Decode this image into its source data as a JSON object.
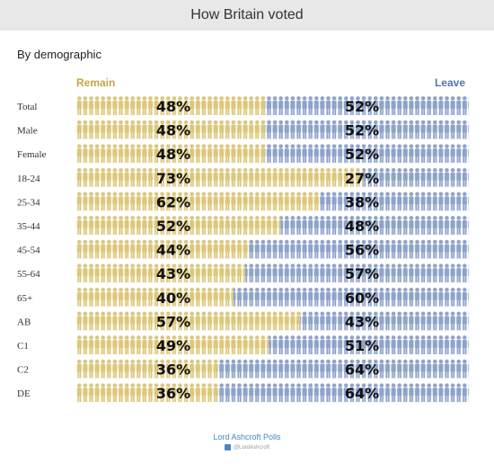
{
  "title": "How Britain voted",
  "subtitle": "By demographic",
  "footer": "Lord Ashcroft Polls",
  "handle": "@LordAshcroft",
  "colors": {
    "remain": "#dcc77a",
    "leave": "#8ea3c9",
    "remain_label": "#c9a543",
    "leave_label": "#4f75b8",
    "footer": "#4a86c6"
  },
  "chart_data": {
    "type": "bar",
    "title": "How Britain voted",
    "subtitle": "By demographic",
    "orientation": "horizontal",
    "stacked": true,
    "series_names": [
      "Remain",
      "Leave"
    ],
    "categories": [
      "Total",
      "Male",
      "Female",
      "18-24",
      "25-34",
      "35-44",
      "45-54",
      "55-64",
      "65+",
      "AB",
      "C1",
      "C2",
      "DE"
    ],
    "series": [
      {
        "name": "Remain",
        "values": [
          48,
          48,
          48,
          73,
          62,
          52,
          44,
          43,
          40,
          57,
          49,
          36,
          36
        ]
      },
      {
        "name": "Leave",
        "values": [
          52,
          52,
          52,
          27,
          38,
          48,
          56,
          57,
          60,
          43,
          51,
          64,
          64
        ]
      }
    ],
    "value_labels": {
      "Remain": [
        "48%",
        "48%",
        "48%",
        "73%",
        "62%",
        "52%",
        "44%",
        "43%",
        "40%",
        "57%",
        "49%",
        "36%",
        "36%"
      ],
      "Leave": [
        "52%",
        "52%",
        "52%",
        "27%",
        "38%",
        "48%",
        "56%",
        "57%",
        "60%",
        "43%",
        "51%",
        "64%",
        "64%"
      ]
    },
    "xlim": [
      0,
      100
    ],
    "legend_position": "top"
  }
}
